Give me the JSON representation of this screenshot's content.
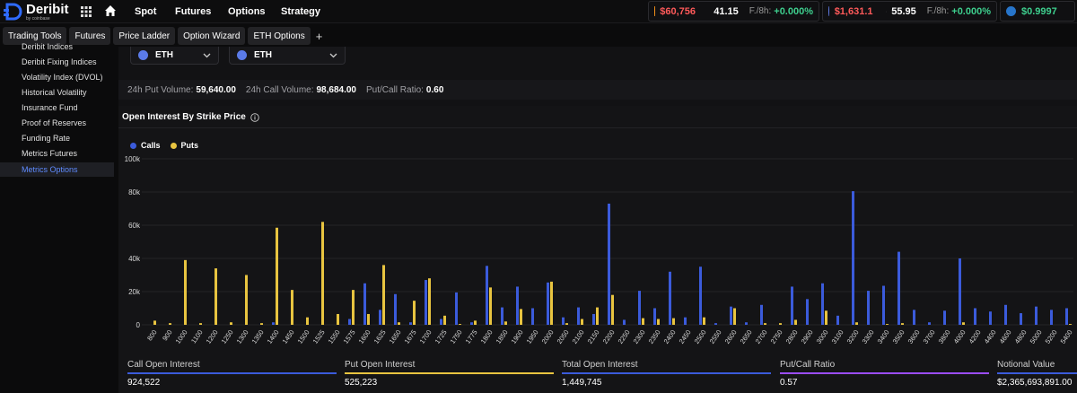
{
  "brand": {
    "name": "Deribit",
    "sub": "by coinbase"
  },
  "nav": [
    "Spot",
    "Futures",
    "Options",
    "Strategy"
  ],
  "tickers": [
    {
      "coin_color": "#f7931a",
      "price": "$60,756",
      "price_color": "#ff5a5a",
      "dvol": "41.15",
      "funding_label": "F./8h:",
      "funding": "+0.000%"
    },
    {
      "coin_color": "#627eea",
      "price": "$1,631.1",
      "price_color": "#ff5a5a",
      "dvol": "55.95",
      "funding_label": "F./8h:",
      "funding": "+0.000%"
    },
    {
      "coin_color": "#2775ca",
      "price": "$0.9997",
      "price_color": "#3ecf8e"
    }
  ],
  "tabs": [
    "Trading Tools",
    "Futures",
    "Price Ladder",
    "Option Wizard",
    "ETH Options"
  ],
  "sidebar": {
    "items": [
      "Deribit Indices",
      "Deribit Fixing Indices",
      "Volatility Index (DVOL)",
      "Historical Volatility",
      "Insurance Fund",
      "Proof of Reserves",
      "Funding Rate",
      "Metrics Futures",
      "Metrics Options"
    ],
    "active_index": 8
  },
  "selects": [
    "ETH",
    "ETH"
  ],
  "volumes": {
    "put_label": "24h Put Volume:",
    "put_value": "59,640.00",
    "call_label": "24h Call Volume:",
    "call_value": "98,684.00",
    "ratio_label": "Put/Call Ratio:",
    "ratio_value": "0.60"
  },
  "panel": {
    "title": "Open Interest By Strike Price"
  },
  "colors": {
    "calls": "#3b5bdb",
    "puts": "#e8c440",
    "purple": "#9b4dff",
    "accent": "#5f8bff"
  },
  "chart_data": {
    "type": "bar",
    "ylim": [
      0,
      100000
    ],
    "yticks": [
      "0",
      "20k",
      "40k",
      "60k",
      "80k",
      "100k"
    ],
    "legend_placement": "top-left",
    "categories": [
      "800",
      "900",
      "1000",
      "1100",
      "1200",
      "1250",
      "1300",
      "1350",
      "1400",
      "1450",
      "1500",
      "1525",
      "1550",
      "1575",
      "1600",
      "1625",
      "1650",
      "1675",
      "1700",
      "1725",
      "1750",
      "1775",
      "1800",
      "1850",
      "1900",
      "1950",
      "2000",
      "2050",
      "2100",
      "2150",
      "2200",
      "2250",
      "2300",
      "2350",
      "2400",
      "2450",
      "2500",
      "2550",
      "2600",
      "2650",
      "2700",
      "2750",
      "2800",
      "2900",
      "3000",
      "3100",
      "3200",
      "3300",
      "3400",
      "3500",
      "3600",
      "3700",
      "3800",
      "4000",
      "4200",
      "4400",
      "4600",
      "4800",
      "5000",
      "5200",
      "5400"
    ],
    "series": [
      {
        "name": "Calls",
        "values": [
          0,
          0,
          0,
          0,
          0,
          0,
          0,
          0,
          1500,
          0,
          0,
          0,
          0,
          3500,
          25000,
          9000,
          18500,
          1500,
          27000,
          3500,
          19500,
          1500,
          35500,
          10500,
          23000,
          10000,
          25500,
          4500,
          10500,
          6500,
          73000,
          3000,
          20500,
          10000,
          32000,
          4500,
          35000,
          1000,
          11000,
          1500,
          12000,
          0,
          23000,
          15500,
          25000,
          5500,
          80500,
          20500,
          23500,
          44000,
          9000,
          1500,
          8500,
          40000,
          10000,
          8000,
          12000,
          7000,
          11000,
          9000,
          10000
        ]
      },
      {
        "name": "Puts",
        "values": [
          2500,
          1000,
          39000,
          1000,
          34000,
          1500,
          30000,
          1000,
          58500,
          21000,
          4500,
          62000,
          6500,
          21000,
          6500,
          36000,
          1500,
          14500,
          28000,
          5500,
          500,
          2500,
          22500,
          2000,
          9500,
          0,
          26000,
          1000,
          3500,
          10500,
          18000,
          0,
          4000,
          3500,
          4000,
          0,
          4500,
          0,
          10000,
          0,
          1000,
          1000,
          3000,
          0,
          8500,
          0,
          1500,
          0,
          500,
          1000,
          0,
          0,
          0,
          1500,
          0,
          0,
          0,
          0,
          0,
          0,
          500
        ]
      }
    ]
  },
  "stats": [
    {
      "label": "Call Open Interest",
      "value": "924,522",
      "color": "#3b5bdb"
    },
    {
      "label": "Put Open Interest",
      "value": "525,223",
      "color": "#e8c440"
    },
    {
      "label": "Total Open Interest",
      "value": "1,449,745",
      "color": "#3b5bdb"
    },
    {
      "label": "Put/Call Ratio",
      "value": "0.57",
      "color": "#9b4dff"
    },
    {
      "label": "Notional Value",
      "value": "$2,365,693,891.00",
      "color": "#3b5bdb"
    }
  ]
}
